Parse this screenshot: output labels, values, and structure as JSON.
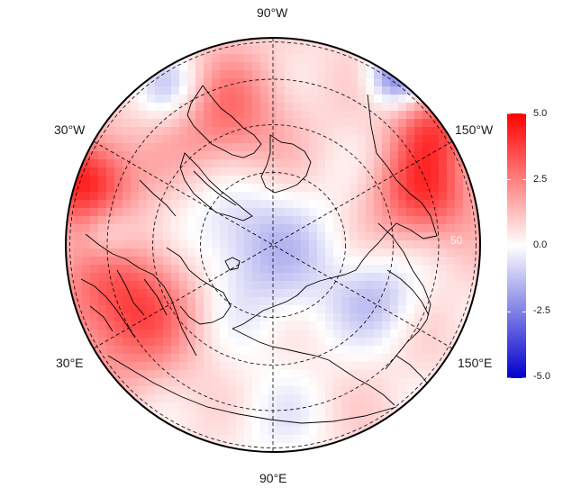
{
  "map": {
    "projection": "north polar stereographic",
    "longitude_labels": {
      "top": "90°W",
      "bottom": "90°E",
      "upper_left": "30°W",
      "lower_left": "30°E",
      "upper_right": "150°W",
      "lower_right": "150°E"
    },
    "latitude_ring_label": "50"
  },
  "colorbar": {
    "ticks": [
      "5.0",
      "2.5",
      "0.0",
      "-2.5",
      "-5.0"
    ],
    "min": -5,
    "max": 5,
    "colors": {
      "low": "#0000cc",
      "mid": "#ffffff",
      "high": "#ff0000"
    }
  }
}
